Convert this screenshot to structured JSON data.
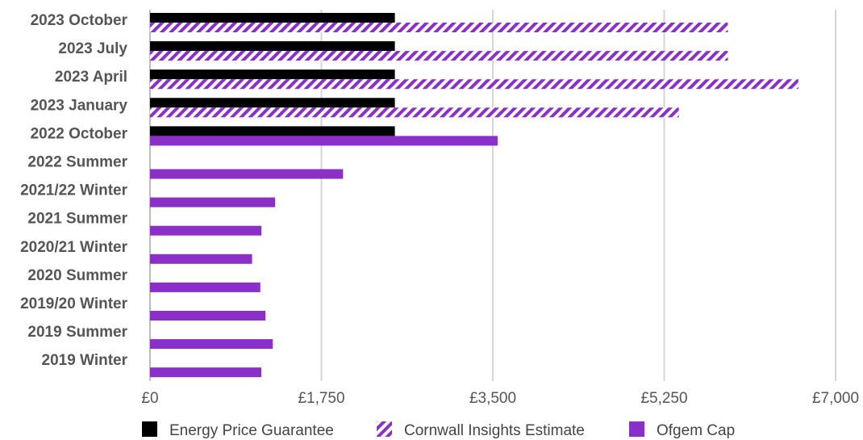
{
  "chart_data": {
    "type": "bar",
    "orientation": "horizontal",
    "categories": [
      "2023 October",
      "2023 July",
      "2023 April",
      "2023 January",
      "2022 October",
      "2022 Summer",
      "2021/22 Winter",
      "2021 Summer",
      "2020/21 Winter",
      "2020 Summer",
      "2019/20 Winter",
      "2019 Summer",
      "2019 Winter"
    ],
    "series": [
      {
        "name": "Energy Price Guarantee",
        "color": "#000000",
        "pattern": "solid",
        "values": [
          2500,
          2500,
          2500,
          2500,
          2500,
          null,
          null,
          null,
          null,
          null,
          null,
          null,
          null
        ]
      },
      {
        "name": "Cornwall Insights Estimate",
        "color": "#8B2FC9",
        "pattern": "diagonal-hatch",
        "values": [
          5900,
          5900,
          6620,
          5400,
          null,
          null,
          null,
          null,
          null,
          null,
          null,
          null,
          null
        ]
      },
      {
        "name": "Ofgem Cap",
        "color": "#8B2FC9",
        "pattern": "solid",
        "values": [
          null,
          null,
          null,
          null,
          3549,
          1971,
          1277,
          1138,
          1042,
          1126,
          1179,
          1254,
          1137
        ]
      }
    ],
    "x_ticks": [
      "£0",
      "£1,750",
      "£3,500",
      "£5,250",
      "£7,000"
    ],
    "xlim": [
      0,
      7000
    ],
    "grid": true,
    "legend_position": "bottom"
  }
}
